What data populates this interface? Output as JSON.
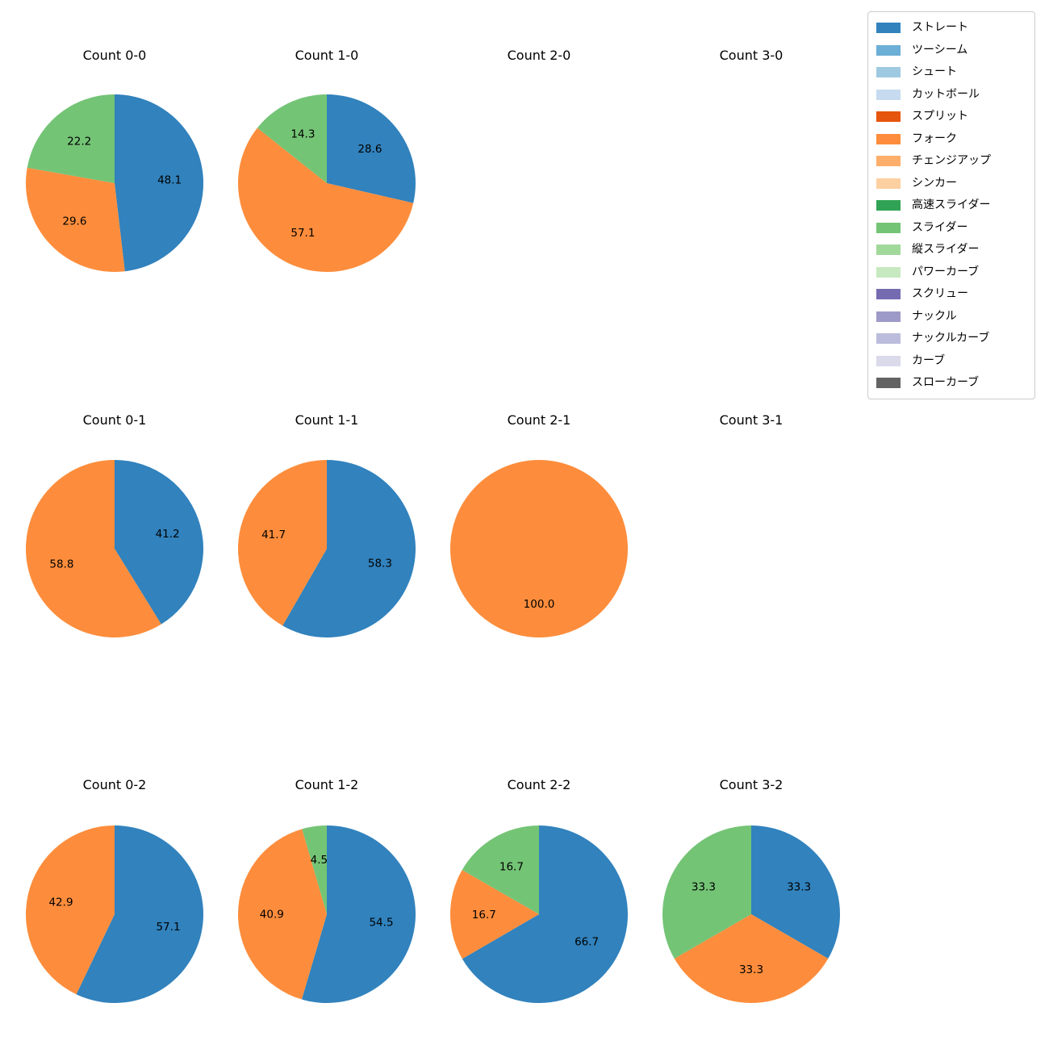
{
  "figure": {
    "background_color": "#ffffff"
  },
  "legend": {
    "items": [
      {
        "label": "ストレート",
        "color": "#3182bd"
      },
      {
        "label": "ツーシーム",
        "color": "#6baed6"
      },
      {
        "label": "シュート",
        "color": "#9ecae1"
      },
      {
        "label": "カットボール",
        "color": "#c6dbef"
      },
      {
        "label": "スプリット",
        "color": "#e6550d"
      },
      {
        "label": "フォーク",
        "color": "#fd8d3c"
      },
      {
        "label": "チェンジアップ",
        "color": "#fdae6b"
      },
      {
        "label": "シンカー",
        "color": "#fdd0a2"
      },
      {
        "label": "高速スライダー",
        "color": "#31a354"
      },
      {
        "label": "スライダー",
        "color": "#74c476"
      },
      {
        "label": "縦スライダー",
        "color": "#a1d99b"
      },
      {
        "label": "パワーカーブ",
        "color": "#c7e9c0"
      },
      {
        "label": "スクリュー",
        "color": "#756bb1"
      },
      {
        "label": "ナックル",
        "color": "#9e9ac8"
      },
      {
        "label": "ナックルカーブ",
        "color": "#bcbddc"
      },
      {
        "label": "カーブ",
        "color": "#dadaeb"
      },
      {
        "label": "スローカーブ",
        "color": "#636363"
      }
    ]
  },
  "chart_data": [
    {
      "type": "pie",
      "title": "Count 0-0",
      "start_angle": 90,
      "direction": "clockwise",
      "slices": [
        {
          "label": "ストレート",
          "value": 48.1,
          "color": "#3182bd"
        },
        {
          "label": "フォーク",
          "value": 29.6,
          "color": "#fd8d3c"
        },
        {
          "label": "スライダー",
          "value": 22.2,
          "color": "#74c476"
        }
      ]
    },
    {
      "type": "pie",
      "title": "Count 1-0",
      "start_angle": 90,
      "direction": "clockwise",
      "slices": [
        {
          "label": "ストレート",
          "value": 28.6,
          "color": "#3182bd"
        },
        {
          "label": "フォーク",
          "value": 57.1,
          "color": "#fd8d3c"
        },
        {
          "label": "スライダー",
          "value": 14.3,
          "color": "#74c476"
        }
      ]
    },
    {
      "type": "pie",
      "title": "Count 2-0",
      "start_angle": 90,
      "direction": "clockwise",
      "slices": []
    },
    {
      "type": "pie",
      "title": "Count 3-0",
      "start_angle": 90,
      "direction": "clockwise",
      "slices": []
    },
    {
      "type": "pie",
      "title": "Count 0-1",
      "start_angle": 90,
      "direction": "clockwise",
      "slices": [
        {
          "label": "ストレート",
          "value": 41.2,
          "color": "#3182bd"
        },
        {
          "label": "フォーク",
          "value": 58.8,
          "color": "#fd8d3c"
        }
      ]
    },
    {
      "type": "pie",
      "title": "Count 1-1",
      "start_angle": 90,
      "direction": "clockwise",
      "slices": [
        {
          "label": "ストレート",
          "value": 58.3,
          "color": "#3182bd"
        },
        {
          "label": "フォーク",
          "value": 41.7,
          "color": "#fd8d3c"
        }
      ]
    },
    {
      "type": "pie",
      "title": "Count 2-1",
      "start_angle": 90,
      "direction": "clockwise",
      "slices": [
        {
          "label": "フォーク",
          "value": 100.0,
          "color": "#fd8d3c"
        }
      ]
    },
    {
      "type": "pie",
      "title": "Count 3-1",
      "start_angle": 90,
      "direction": "clockwise",
      "slices": []
    },
    {
      "type": "pie",
      "title": "Count 0-2",
      "start_angle": 90,
      "direction": "clockwise",
      "slices": [
        {
          "label": "ストレート",
          "value": 57.1,
          "color": "#3182bd"
        },
        {
          "label": "フォーク",
          "value": 42.9,
          "color": "#fd8d3c"
        }
      ]
    },
    {
      "type": "pie",
      "title": "Count 1-2",
      "start_angle": 90,
      "direction": "clockwise",
      "slices": [
        {
          "label": "ストレート",
          "value": 54.5,
          "color": "#3182bd"
        },
        {
          "label": "フォーク",
          "value": 40.9,
          "color": "#fd8d3c"
        },
        {
          "label": "スライダー",
          "value": 4.5,
          "color": "#74c476"
        }
      ]
    },
    {
      "type": "pie",
      "title": "Count 2-2",
      "start_angle": 90,
      "direction": "clockwise",
      "slices": [
        {
          "label": "ストレート",
          "value": 66.7,
          "color": "#3182bd"
        },
        {
          "label": "フォーク",
          "value": 16.7,
          "color": "#fd8d3c"
        },
        {
          "label": "スライダー",
          "value": 16.7,
          "color": "#74c476"
        }
      ]
    },
    {
      "type": "pie",
      "title": "Count 3-2",
      "start_angle": 90,
      "direction": "clockwise",
      "slices": [
        {
          "label": "ストレート",
          "value": 33.3,
          "color": "#3182bd"
        },
        {
          "label": "フォーク",
          "value": 33.3,
          "color": "#fd8d3c"
        },
        {
          "label": "スライダー",
          "value": 33.3,
          "color": "#74c476"
        }
      ]
    }
  ]
}
